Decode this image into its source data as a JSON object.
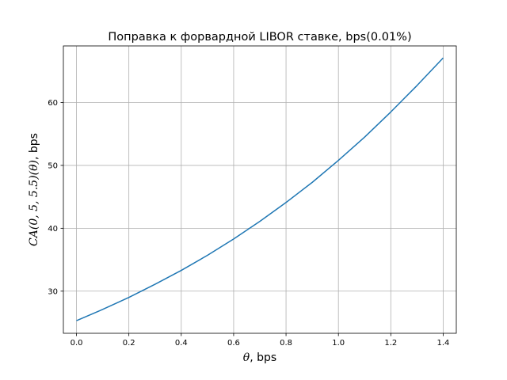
{
  "chart_data": {
    "type": "line",
    "title": "Поправка к форвардной LIBOR ставке, bps(0.01%)",
    "xlabel": {
      "math": "θ",
      "rest": ", bps"
    },
    "ylabel": {
      "math": "CA(0, 5, 5.5)(θ)",
      "rest": ", bps"
    },
    "xlim": [
      -0.05,
      1.45
    ],
    "ylim": [
      23.3,
      69.0
    ],
    "xticks": [
      0.0,
      0.2,
      0.4,
      0.6,
      0.8,
      1.0,
      1.2,
      1.4
    ],
    "xtick_labels": [
      "0.0",
      "0.2",
      "0.4",
      "0.6",
      "0.8",
      "1.0",
      "1.2",
      "1.4"
    ],
    "yticks": [
      30,
      40,
      50,
      60
    ],
    "ytick_labels": [
      "30",
      "40",
      "50",
      "60"
    ],
    "grid": true,
    "legend": false,
    "series": [
      {
        "color": "#1f77b4",
        "x": [
          0.0,
          0.1,
          0.2,
          0.3,
          0.4,
          0.5,
          0.6,
          0.7,
          0.8,
          0.9,
          1.0,
          1.1,
          1.2,
          1.3,
          1.4
        ],
        "y": [
          25.3,
          27.1,
          29.0,
          31.1,
          33.3,
          35.7,
          38.3,
          41.1,
          44.1,
          47.3,
          50.8,
          54.5,
          58.5,
          62.7,
          67.1
        ]
      }
    ]
  }
}
